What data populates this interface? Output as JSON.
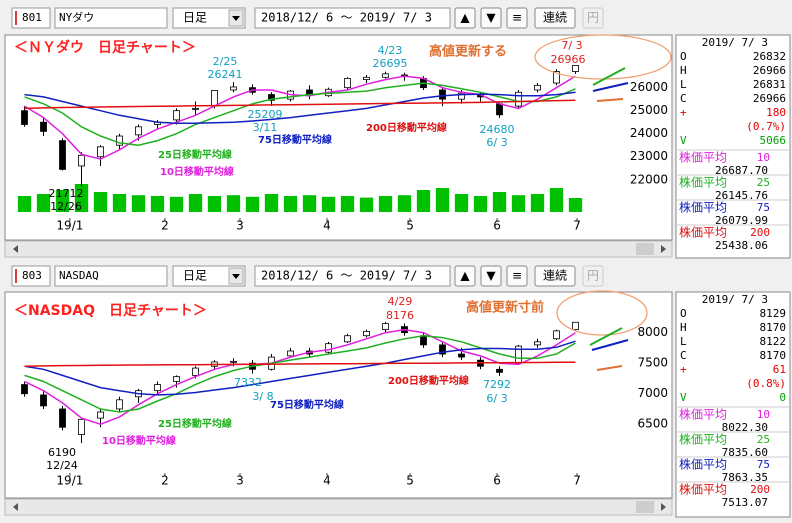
{
  "chart_data": [
    {
      "type": "candlestick",
      "title": "＜ＮＹダウ　日足チャート＞",
      "categories": [
        null,
        null,
        null,
        null,
        null,
        null,
        null,
        null,
        null,
        null,
        null,
        null,
        null,
        null,
        null,
        null,
        null,
        null,
        null,
        null,
        null,
        null,
        null,
        null,
        null,
        null,
        null,
        null,
        null,
        null
      ],
      "open": [
        25000,
        24500,
        23700,
        22600,
        23000,
        23500,
        23950,
        24400,
        24600,
        25100,
        25200,
        25900,
        26000,
        25700,
        25500,
        25900,
        25650,
        26000,
        26350,
        26450,
        26550,
        26400,
        25900,
        25500,
        25700,
        25300,
        25200,
        25900,
        26200,
        26700
      ],
      "high": [
        25200,
        24700,
        23800,
        23200,
        23500,
        24000,
        24400,
        24600,
        25100,
        25400,
        25900,
        26241,
        26150,
        25800,
        25900,
        26100,
        26000,
        26450,
        26550,
        26695,
        26650,
        26500,
        26000,
        25900,
        25800,
        25400,
        25900,
        26200,
        26800,
        26966
      ],
      "low": [
        24300,
        23900,
        22400,
        21712,
        22600,
        23300,
        23700,
        24200,
        24400,
        24800,
        25100,
        25800,
        25700,
        25209,
        25400,
        25500,
        25600,
        25900,
        26200,
        26400,
        26300,
        25900,
        25200,
        25300,
        25400,
        24680,
        25100,
        25800,
        26100,
        26600
      ],
      "close": [
        24400,
        24100,
        22450,
        23060,
        23430,
        23900,
        24300,
        24500,
        25000,
        25100,
        25880,
        26030,
        25800,
        25450,
        25850,
        25700,
        25930,
        26400,
        26450,
        26600,
        26500,
        26000,
        25500,
        25760,
        25600,
        24820,
        25800,
        26100,
        26700,
        26966
      ],
      "candle_colors": {
        "up": "#ffffff",
        "down": "#000000",
        "outline": "#000000"
      },
      "series": [
        {
          "name": "10日移動平均線",
          "color": "#e020e0",
          "values": [
            25200,
            24700,
            24000,
            23100,
            22900,
            23300,
            23800,
            24200,
            24500,
            24800,
            25200,
            25600,
            25900,
            25900,
            25700,
            25650,
            25800,
            25900,
            26150,
            26350,
            26500,
            26400,
            26000,
            25800,
            25700,
            25300,
            25100,
            25500,
            26000,
            26500
          ]
        },
        {
          "name": "25日移動平均線",
          "color": "#20b020",
          "values": [
            25600,
            25300,
            24900,
            24300,
            23900,
            23600,
            23500,
            23700,
            24000,
            24400,
            24700,
            25000,
            25300,
            25500,
            25600,
            25700,
            25750,
            25800,
            25850,
            26000,
            26100,
            26200,
            26100,
            25950,
            25800,
            25600,
            25400,
            25400,
            25600,
            25950
          ]
        },
        {
          "name": "75日移動平均線",
          "color": "#1020c0",
          "values": [
            25700,
            25600,
            25400,
            25200,
            25000,
            24800,
            24650,
            24500,
            24450,
            24450,
            24480,
            24500,
            24550,
            24620,
            24700,
            24800,
            24900,
            25000,
            25100,
            25250,
            25400,
            25550,
            25650,
            25700,
            25720,
            25700,
            25650,
            25650,
            25700,
            25800
          ]
        },
        {
          "name": "200日移動平均線",
          "color": "#e01010",
          "values": [
            25100,
            25120,
            25140,
            25150,
            25160,
            25170,
            25180,
            25190,
            25200,
            25210,
            25220,
            25230,
            25240,
            25250,
            25260,
            25270,
            25280,
            25290,
            25300,
            25310,
            25320,
            25330,
            25340,
            25350,
            25360,
            25380,
            25400,
            25420,
            25440,
            25450
          ]
        }
      ],
      "volume": {
        "color": "#00c000",
        "ylim": [
          0,
          100
        ],
        "values": [
          40,
          45,
          55,
          70,
          50,
          45,
          42,
          40,
          38,
          45,
          40,
          42,
          38,
          45,
          40,
          42,
          38,
          40,
          36,
          40,
          42,
          55,
          60,
          45,
          40,
          50,
          42,
          45,
          60,
          35
        ]
      },
      "ylim": [
        20600,
        28200
      ],
      "yticks": [
        22000,
        23000,
        24000,
        25000,
        26000
      ],
      "xlim": [
        -0.5,
        29.5
      ],
      "xticks": [
        {
          "value": 2.39,
          "label": "19/1"
        },
        {
          "value": 7.39,
          "label": "2"
        },
        {
          "value": 11.34,
          "label": "3"
        },
        {
          "value": 15.92,
          "label": "4"
        },
        {
          "value": 20.29,
          "label": "5"
        },
        {
          "value": 24.87,
          "label": "6"
        },
        {
          "value": 29.08,
          "label": "7"
        }
      ],
      "annotations": [
        "2/25",
        "26241",
        "4/23",
        "26695",
        "高値更新する",
        "7/ 3",
        "26966",
        "25209",
        "3/11",
        "24680",
        "6/ 3",
        "21712",
        "12/26"
      ]
    },
    {
      "type": "candlestick",
      "title": "＜NASDAQ　日足チャート＞",
      "categories": [
        null,
        null,
        null,
        null,
        null,
        null,
        null,
        null,
        null,
        null,
        null,
        null,
        null,
        null,
        null,
        null,
        null,
        null,
        null,
        null,
        null,
        null,
        null,
        null,
        null,
        null,
        null,
        null,
        null,
        null
      ],
      "open": [
        7150,
        6980,
        6750,
        6330,
        6600,
        6750,
        6950,
        7050,
        7200,
        7300,
        7450,
        7520,
        7500,
        7400,
        7620,
        7700,
        7680,
        7850,
        7950,
        8050,
        8100,
        7950,
        7800,
        7650,
        7550,
        7400,
        7500,
        7800,
        7900,
        8050
      ],
      "high": [
        7200,
        7050,
        6800,
        6600,
        6750,
        6950,
        7080,
        7200,
        7300,
        7450,
        7550,
        7580,
        7550,
        7650,
        7750,
        7750,
        7850,
        7980,
        8050,
        8176,
        8150,
        8000,
        7850,
        7750,
        7600,
        7450,
        7800,
        7900,
        8050,
        8170
      ],
      "low": [
        6950,
        6750,
        6400,
        6190,
        6450,
        6700,
        6850,
        7000,
        7100,
        7250,
        7400,
        7450,
        7332,
        7380,
        7600,
        7600,
        7650,
        7830,
        7920,
        8000,
        7950,
        7750,
        7600,
        7550,
        7400,
        7292,
        7480,
        7750,
        7880,
        8030
      ],
      "close": [
        7000,
        6800,
        6450,
        6580,
        6700,
        6900,
        7050,
        7150,
        7280,
        7420,
        7520,
        7530,
        7400,
        7600,
        7700,
        7650,
        7820,
        7950,
        8020,
        8150,
        8000,
        7800,
        7650,
        7600,
        7450,
        7350,
        7780,
        7850,
        8030,
        8170
      ],
      "candle_colors": {
        "up": "#ffffff",
        "down": "#000000",
        "outline": "#000000"
      },
      "series": [
        {
          "name": "10日移動平均線",
          "color": "#e020e0",
          "values": [
            7200,
            7050,
            6850,
            6600,
            6500,
            6620,
            6820,
            7000,
            7150,
            7280,
            7400,
            7480,
            7480,
            7500,
            7600,
            7680,
            7720,
            7800,
            7900,
            8000,
            8050,
            8000,
            7850,
            7700,
            7620,
            7500,
            7480,
            7620,
            7800,
            8000
          ]
        },
        {
          "name": "25日移動平均線",
          "color": "#20b020",
          "values": [
            7300,
            7200,
            7050,
            6900,
            6750,
            6700,
            6750,
            6880,
            7000,
            7150,
            7280,
            7380,
            7450,
            7500,
            7550,
            7600,
            7650,
            7700,
            7750,
            7830,
            7900,
            7950,
            7920,
            7850,
            7750,
            7650,
            7580,
            7580,
            7650,
            7830
          ]
        },
        {
          "name": "75日移動平均線",
          "color": "#1020c0",
          "values": [
            7450,
            7400,
            7300,
            7200,
            7100,
            7050,
            7000,
            6980,
            6990,
            7020,
            7060,
            7100,
            7150,
            7200,
            7250,
            7300,
            7350,
            7400,
            7450,
            7500,
            7560,
            7620,
            7680,
            7720,
            7740,
            7740,
            7730,
            7730,
            7760,
            7860
          ]
        },
        {
          "name": "200日移動平均線",
          "color": "#e01010",
          "values": [
            7450,
            7455,
            7460,
            7462,
            7465,
            7468,
            7470,
            7472,
            7474,
            7476,
            7478,
            7480,
            7482,
            7484,
            7486,
            7488,
            7490,
            7492,
            7494,
            7496,
            7498,
            7500,
            7502,
            7504,
            7506,
            7508,
            7510,
            7512,
            7514,
            7516
          ]
        }
      ],
      "ylim": [
        5750,
        8650
      ],
      "yticks": [
        6500,
        7000,
        7500,
        8000
      ],
      "xlim": [
        -0.5,
        29.5
      ],
      "xticks": [
        {
          "value": 2.39,
          "label": "19/1"
        },
        {
          "value": 7.39,
          "label": "2"
        },
        {
          "value": 11.34,
          "label": "3"
        },
        {
          "value": 15.92,
          "label": "4"
        },
        {
          "value": 20.29,
          "label": "5"
        },
        {
          "value": 24.87,
          "label": "6"
        },
        {
          "value": 29.08,
          "label": "7"
        }
      ],
      "annotations": [
        "4/29",
        "8176",
        "高値更新寸前",
        "7332",
        "3/ 8",
        "7292",
        "6/ 3",
        "6190",
        "12/24"
      ]
    }
  ],
  "panels": [
    {
      "toolbar": {
        "code": "801",
        "name": "NYダウ",
        "period": "日足",
        "range": "2018/12/ 6 ～ 2019/ 7/ 3",
        "buttons": [
          "▲",
          "▼",
          "≡",
          "連続",
          "円"
        ]
      },
      "info": {
        "date": "2019/ 7/ 3",
        "rows": [
          {
            "label": "O",
            "value": "26832",
            "color": "#000000"
          },
          {
            "label": "H",
            "value": "26966",
            "color": "#000000"
          },
          {
            "label": "L",
            "value": "26831",
            "color": "#000000"
          },
          {
            "label": "C",
            "value": "26966",
            "color": "#000000"
          },
          {
            "label": "+",
            "value": "180",
            "color": "#e00000"
          },
          {
            "value": "(0.7%)",
            "color": "#e00000"
          },
          {
            "label": "V",
            "value": "5066",
            "color": "#00a000"
          }
        ],
        "averages": [
          {
            "label": "株価平均",
            "period": "10",
            "value": "26687.70"
          },
          {
            "label": "株価平均",
            "period": "25",
            "value": "26145.76"
          },
          {
            "label": "株価平均",
            "period": "75",
            "value": "26079.99"
          },
          {
            "label": "株価平均",
            "period": "200",
            "value": "25438.06"
          }
        ]
      }
    },
    {
      "toolbar": {
        "code": "803",
        "name": "NASDAQ",
        "period": "日足",
        "range": "2018/12/ 6 ～ 2019/ 7/ 3",
        "buttons": [
          "▲",
          "▼",
          "≡",
          "連続",
          "円"
        ]
      },
      "info": {
        "date": "2019/ 7/ 3",
        "rows": [
          {
            "label": "O",
            "value": "8129",
            "color": "#000000"
          },
          {
            "label": "H",
            "value": "8170",
            "color": "#000000"
          },
          {
            "label": "L",
            "value": "8122",
            "color": "#000000"
          },
          {
            "label": "C",
            "value": "8170",
            "color": "#000000"
          },
          {
            "label": "+",
            "value": "61",
            "color": "#e00000"
          },
          {
            "value": "(0.8%)",
            "color": "#e00000"
          },
          {
            "label": "V",
            "value": "0",
            "color": "#00a000"
          }
        ],
        "averages": [
          {
            "label": "株価平均",
            "period": "10",
            "value": "8022.30"
          },
          {
            "label": "株価平均",
            "period": "25",
            "value": "7835.60"
          },
          {
            "label": "株価平均",
            "period": "75",
            "value": "7863.35"
          },
          {
            "label": "株価平均",
            "period": "200",
            "value": "7513.07"
          }
        ]
      }
    }
  ]
}
